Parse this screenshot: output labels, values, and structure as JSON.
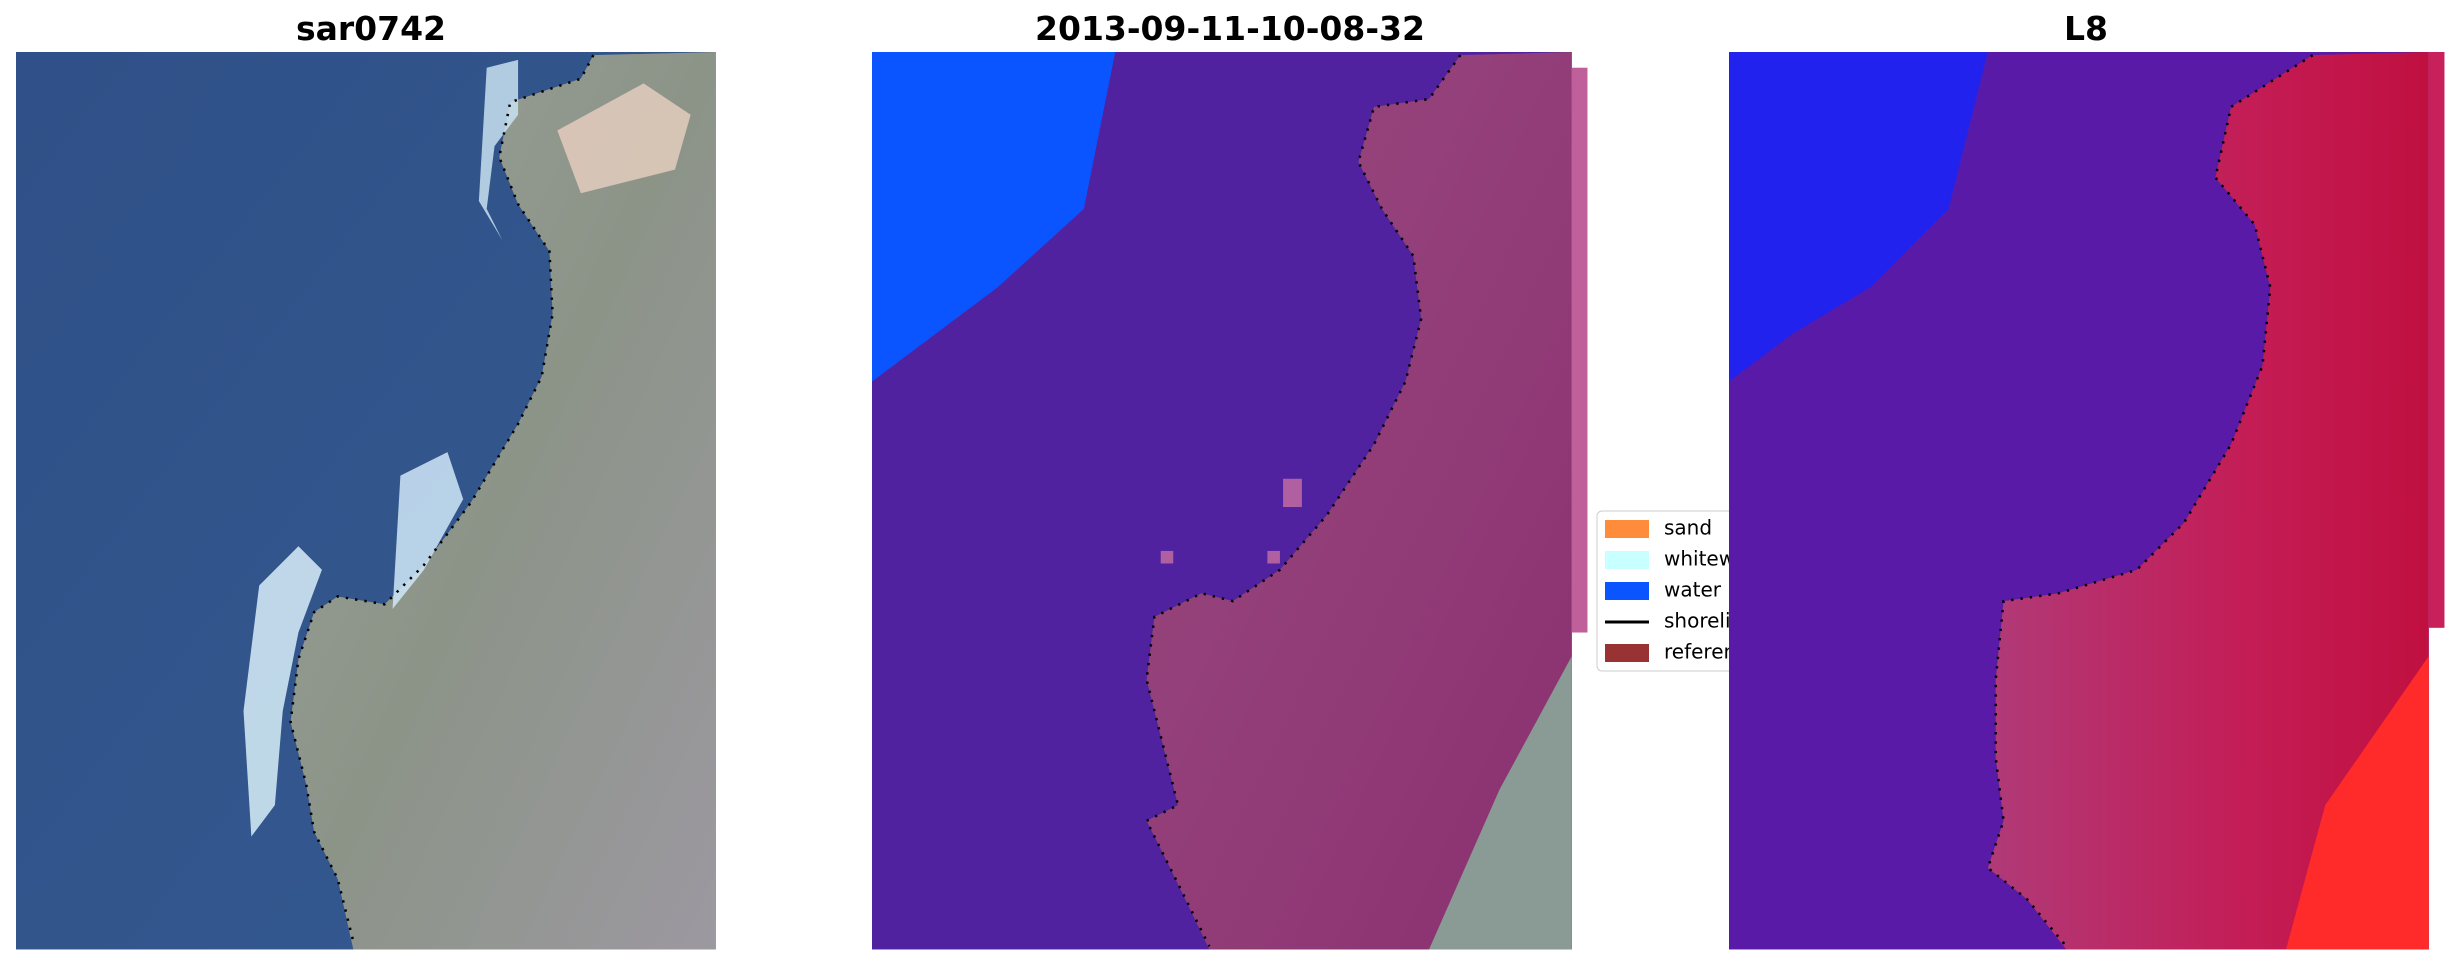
{
  "panels": [
    {
      "title": "sar0742"
    },
    {
      "title": "2013-09-11-10-08-32"
    },
    {
      "title": "L8"
    }
  ],
  "legend": [
    {
      "label": "sand",
      "color": "#ff8c3a"
    },
    {
      "label": "whitewater",
      "color": "#c8ffff"
    },
    {
      "label": "water",
      "color": "#0a55ff"
    },
    {
      "label": "shoreline",
      "color": "#000000"
    },
    {
      "label": "reference",
      "color": "#993333"
    }
  ]
}
